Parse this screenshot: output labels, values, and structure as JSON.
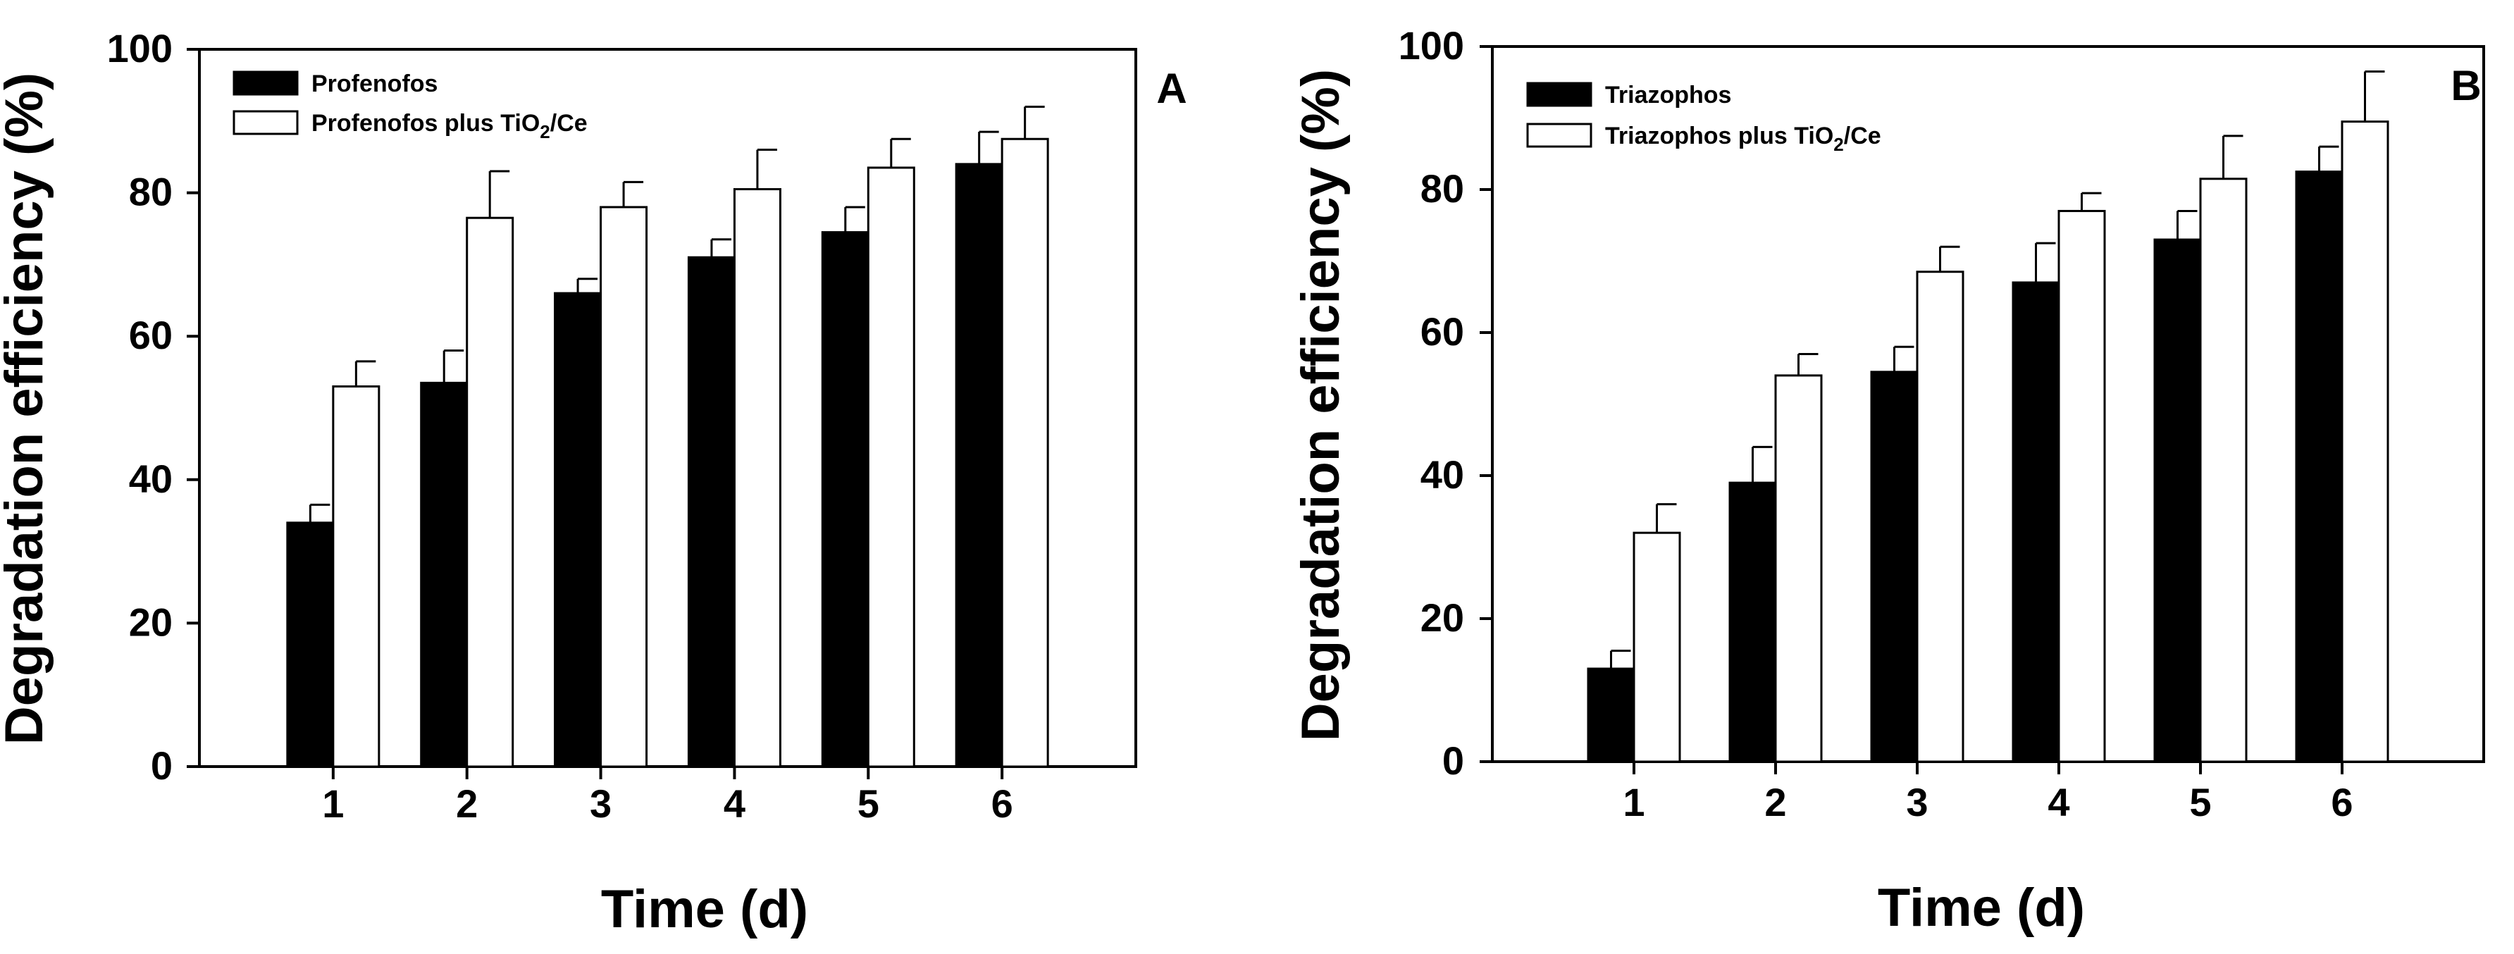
{
  "figure": {
    "palette": {
      "background": "#ffffff",
      "axis": "#000000",
      "series_fill": [
        "#000000",
        "#ffffff"
      ],
      "bar_stroke": "#000000"
    }
  },
  "chart_data": [
    {
      "type": "bar",
      "panel_label": "A",
      "title": "",
      "xlabel": "Time (d)",
      "ylabel": "Degradation efficiency (%)",
      "ylim": [
        0,
        100
      ],
      "yticks": [
        0,
        20,
        40,
        60,
        80,
        100
      ],
      "grid": false,
      "legend_position": "top-left",
      "categories": [
        "1",
        "2",
        "3",
        "4",
        "5",
        "6"
      ],
      "series": [
        {
          "name": "Profenofos",
          "legend_parts": {
            "base": "Profenofos",
            "sub": "",
            "tail": ""
          },
          "values": [
            34,
            53.5,
            66,
            71,
            74.5,
            84
          ],
          "errors": [
            2.5,
            4.5,
            2,
            2.5,
            3.5,
            4.5
          ]
        },
        {
          "name": "Profenofos plus TiO2/Ce",
          "legend_parts": {
            "base": "Profenofos plus TiO",
            "sub": "2",
            "tail": "/Ce"
          },
          "values": [
            53,
            76.5,
            78,
            80.5,
            83.5,
            87.5
          ],
          "errors": [
            3.5,
            6.5,
            3.5,
            5.5,
            4,
            4.5
          ]
        }
      ]
    },
    {
      "type": "bar",
      "panel_label": "B",
      "title": "",
      "xlabel": "Time (d)",
      "ylabel": "Degradation efficiency (%)",
      "ylim": [
        0,
        100
      ],
      "yticks": [
        0,
        20,
        40,
        60,
        80,
        100
      ],
      "grid": false,
      "legend_position": "top-left",
      "categories": [
        "1",
        "2",
        "3",
        "4",
        "5",
        "6"
      ],
      "series": [
        {
          "name": "Triazophos",
          "legend_parts": {
            "base": "Triazophos",
            "sub": "",
            "tail": ""
          },
          "values": [
            13,
            39,
            54.5,
            67,
            73,
            82.5
          ],
          "errors": [
            2.5,
            5,
            3.5,
            5.5,
            4,
            3.5
          ]
        },
        {
          "name": "Triazophos plus TiO2/Ce",
          "legend_parts": {
            "base": "Triazophos plus TiO",
            "sub": "2",
            "tail": "/Ce"
          },
          "values": [
            32,
            54,
            68.5,
            77,
            81.5,
            89.5
          ],
          "errors": [
            4,
            3,
            3.5,
            2.5,
            6,
            7
          ]
        }
      ]
    }
  ]
}
